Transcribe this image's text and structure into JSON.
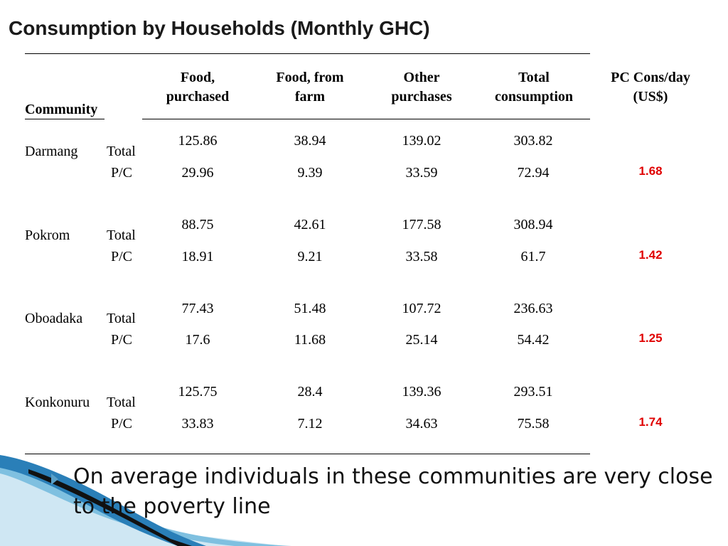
{
  "title": "Consumption by Households (Monthly GHC)",
  "table": {
    "community_header": "Community",
    "columns": [
      {
        "line1": "Food,",
        "line2": "purchased"
      },
      {
        "line1": "Food, from",
        "line2": "farm"
      },
      {
        "line1": "Other",
        "line2": "purchases"
      },
      {
        "line1": "Total",
        "line2": "consumption"
      },
      {
        "line1": "PC Cons/day",
        "line2": "(US$)"
      }
    ],
    "rows": [
      {
        "community": "Darmang",
        "total_label": "Total",
        "pc_label": "P/C",
        "total": [
          "125.86",
          "38.94",
          "139.02",
          "303.82"
        ],
        "pc": [
          "29.96",
          "9.39",
          "33.59",
          "72.94"
        ],
        "pc_cons_day": "1.68"
      },
      {
        "community": "Pokrom",
        "total_label": "Total",
        "pc_label": "P/C",
        "total": [
          "88.75",
          "42.61",
          "177.58",
          "308.94"
        ],
        "pc": [
          "18.91",
          "9.21",
          "33.58",
          "61.7"
        ],
        "pc_cons_day": "1.42"
      },
      {
        "community": "Oboadaka",
        "total_label": "Total",
        "pc_label": "P/C",
        "total": [
          "77.43",
          "51.48",
          "107.72",
          "236.63"
        ],
        "pc": [
          "17.6",
          "11.68",
          "25.14",
          "54.42"
        ],
        "pc_cons_day": "1.25"
      },
      {
        "community": "Konkonuru",
        "total_label": "Total",
        "pc_label": "P/C",
        "total": [
          "125.75",
          "28.4",
          "139.36",
          "293.51"
        ],
        "pc": [
          "33.83",
          "7.12",
          "34.63",
          "75.58"
        ],
        "pc_cons_day": "1.74"
      }
    ]
  },
  "note": "On average individuals in these communities are very close to the poverty line",
  "colors": {
    "highlight": "#e00000",
    "bullet": "#5aa0c8"
  }
}
